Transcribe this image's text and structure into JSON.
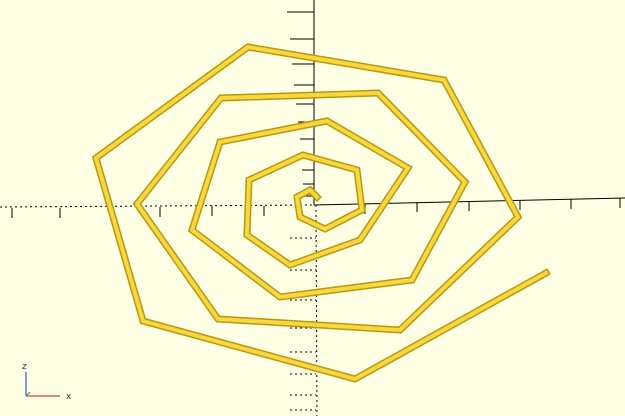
{
  "viewport": {
    "background": "#FFFFE5",
    "object_color": "#F8D740",
    "object_edge_color": "#B59A10"
  },
  "gizmo": {
    "z_label": "z",
    "x_label": "x"
  }
}
